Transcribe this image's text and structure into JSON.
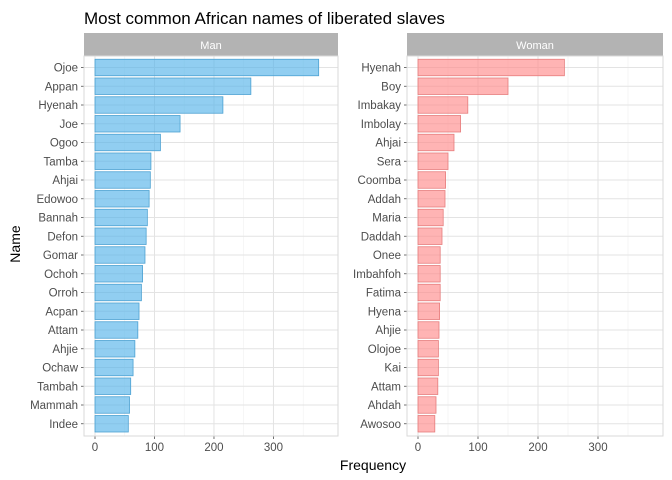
{
  "chart_data": {
    "type": "bar",
    "orientation": "horizontal",
    "title": "Most common African names of liberated slaves",
    "xlabel": "Frequency",
    "ylabel": "Name",
    "xlim": [
      0,
      390
    ],
    "x_ticks": [
      0,
      100,
      200,
      300
    ],
    "grid": true,
    "legend": "none",
    "panels": [
      {
        "name": "Man",
        "color": "#56B4E9",
        "categories": [
          "Ojoe",
          "Appan",
          "Hyenah",
          "Joe",
          "Ogoo",
          "Tamba",
          "Ahjai",
          "Edowoo",
          "Bannah",
          "Defon",
          "Gomar",
          "Ochoh",
          "Orroh",
          "Acpan",
          "Attam",
          "Ahjie",
          "Ochaw",
          "Tambah",
          "Mammah",
          "Indee"
        ],
        "values": [
          376,
          262,
          215,
          143,
          110,
          94,
          93,
          91,
          88,
          86,
          84,
          80,
          78,
          74,
          72,
          67,
          64,
          60,
          58,
          56
        ]
      },
      {
        "name": "Woman",
        "color": "#FF8C8C",
        "categories": [
          "Hyenah",
          "Boy",
          "Imbakay",
          "Imbolay",
          "Ahjai",
          "Sera",
          "Coomba",
          "Addah",
          "Maria",
          "Daddah",
          "Onee",
          "Imbahfoh",
          "Fatima",
          "Hyena",
          "Ahjie",
          "Olojoe",
          "Kai",
          "Attam",
          "Ahdah",
          "Awosoo"
        ],
        "values": [
          244,
          150,
          83,
          71,
          60,
          50,
          46,
          45,
          42,
          40,
          37,
          37,
          37,
          36,
          35,
          34,
          34,
          33,
          30,
          28
        ]
      }
    ]
  }
}
